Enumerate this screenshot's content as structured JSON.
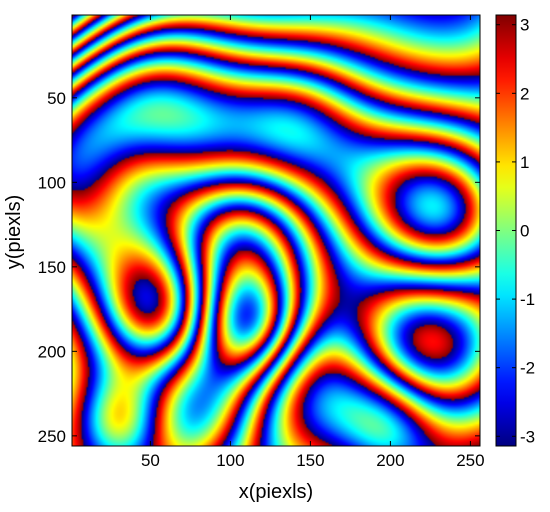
{
  "chart_data": {
    "type": "heatmap",
    "title": "",
    "xlabel": "x(piexls)",
    "ylabel": "y(piexls)",
    "xlim": [
      1,
      256
    ],
    "ylim": [
      1,
      256
    ],
    "y_reversed": true,
    "x_ticks": [
      50,
      100,
      150,
      200,
      250
    ],
    "y_ticks": [
      50,
      100,
      150,
      200,
      250
    ],
    "x_tick_labels": [
      "50",
      "100",
      "150",
      "200",
      "250"
    ],
    "y_tick_labels": [
      "50",
      "100",
      "150",
      "200",
      "250"
    ],
    "value_description": "wrapped phase (radians)",
    "colorbar": {
      "range": [
        -3.14159,
        3.14159
      ],
      "ticks": [
        -3,
        -2,
        -1,
        0,
        1,
        2,
        3
      ],
      "tick_labels": [
        "-3",
        "-2",
        "-1",
        "0",
        "1",
        "2",
        "3"
      ],
      "colormap": "jet",
      "colormap_stops": [
        "#00008f",
        "#0000ff",
        "#00ffff",
        "#ffff00",
        "#ff0000",
        "#800000"
      ]
    },
    "pattern": "wrapped phase fringe map: dense near-parallel diagonal fringes in the upper-left region, closed ring fringes elsewhere"
  }
}
